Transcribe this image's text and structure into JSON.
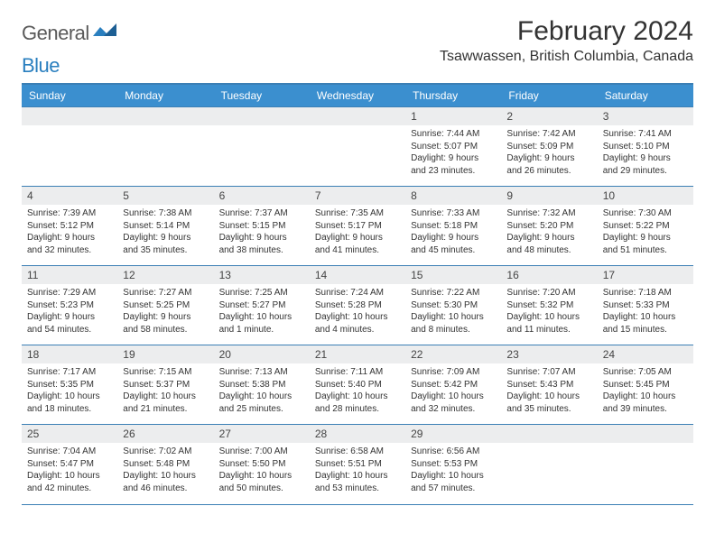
{
  "brand": {
    "part1": "General",
    "part2": "Blue"
  },
  "title": "February 2024",
  "location": "Tsawwassen, British Columbia, Canada",
  "colors": {
    "header_bg": "#3b8fcf",
    "header_text": "#ffffff",
    "rule": "#3b7fb5",
    "daynum_bg": "#ecedee",
    "text": "#333333",
    "logo_dark": "#5a5a5a",
    "logo_blue": "#2a7fbf"
  },
  "weekdays": [
    "Sunday",
    "Monday",
    "Tuesday",
    "Wednesday",
    "Thursday",
    "Friday",
    "Saturday"
  ],
  "weeks": [
    [
      null,
      null,
      null,
      null,
      {
        "n": "1",
        "sr": "Sunrise: 7:44 AM",
        "ss": "Sunset: 5:07 PM",
        "dl": "Daylight: 9 hours and 23 minutes."
      },
      {
        "n": "2",
        "sr": "Sunrise: 7:42 AM",
        "ss": "Sunset: 5:09 PM",
        "dl": "Daylight: 9 hours and 26 minutes."
      },
      {
        "n": "3",
        "sr": "Sunrise: 7:41 AM",
        "ss": "Sunset: 5:10 PM",
        "dl": "Daylight: 9 hours and 29 minutes."
      }
    ],
    [
      {
        "n": "4",
        "sr": "Sunrise: 7:39 AM",
        "ss": "Sunset: 5:12 PM",
        "dl": "Daylight: 9 hours and 32 minutes."
      },
      {
        "n": "5",
        "sr": "Sunrise: 7:38 AM",
        "ss": "Sunset: 5:14 PM",
        "dl": "Daylight: 9 hours and 35 minutes."
      },
      {
        "n": "6",
        "sr": "Sunrise: 7:37 AM",
        "ss": "Sunset: 5:15 PM",
        "dl": "Daylight: 9 hours and 38 minutes."
      },
      {
        "n": "7",
        "sr": "Sunrise: 7:35 AM",
        "ss": "Sunset: 5:17 PM",
        "dl": "Daylight: 9 hours and 41 minutes."
      },
      {
        "n": "8",
        "sr": "Sunrise: 7:33 AM",
        "ss": "Sunset: 5:18 PM",
        "dl": "Daylight: 9 hours and 45 minutes."
      },
      {
        "n": "9",
        "sr": "Sunrise: 7:32 AM",
        "ss": "Sunset: 5:20 PM",
        "dl": "Daylight: 9 hours and 48 minutes."
      },
      {
        "n": "10",
        "sr": "Sunrise: 7:30 AM",
        "ss": "Sunset: 5:22 PM",
        "dl": "Daylight: 9 hours and 51 minutes."
      }
    ],
    [
      {
        "n": "11",
        "sr": "Sunrise: 7:29 AM",
        "ss": "Sunset: 5:23 PM",
        "dl": "Daylight: 9 hours and 54 minutes."
      },
      {
        "n": "12",
        "sr": "Sunrise: 7:27 AM",
        "ss": "Sunset: 5:25 PM",
        "dl": "Daylight: 9 hours and 58 minutes."
      },
      {
        "n": "13",
        "sr": "Sunrise: 7:25 AM",
        "ss": "Sunset: 5:27 PM",
        "dl": "Daylight: 10 hours and 1 minute."
      },
      {
        "n": "14",
        "sr": "Sunrise: 7:24 AM",
        "ss": "Sunset: 5:28 PM",
        "dl": "Daylight: 10 hours and 4 minutes."
      },
      {
        "n": "15",
        "sr": "Sunrise: 7:22 AM",
        "ss": "Sunset: 5:30 PM",
        "dl": "Daylight: 10 hours and 8 minutes."
      },
      {
        "n": "16",
        "sr": "Sunrise: 7:20 AM",
        "ss": "Sunset: 5:32 PM",
        "dl": "Daylight: 10 hours and 11 minutes."
      },
      {
        "n": "17",
        "sr": "Sunrise: 7:18 AM",
        "ss": "Sunset: 5:33 PM",
        "dl": "Daylight: 10 hours and 15 minutes."
      }
    ],
    [
      {
        "n": "18",
        "sr": "Sunrise: 7:17 AM",
        "ss": "Sunset: 5:35 PM",
        "dl": "Daylight: 10 hours and 18 minutes."
      },
      {
        "n": "19",
        "sr": "Sunrise: 7:15 AM",
        "ss": "Sunset: 5:37 PM",
        "dl": "Daylight: 10 hours and 21 minutes."
      },
      {
        "n": "20",
        "sr": "Sunrise: 7:13 AM",
        "ss": "Sunset: 5:38 PM",
        "dl": "Daylight: 10 hours and 25 minutes."
      },
      {
        "n": "21",
        "sr": "Sunrise: 7:11 AM",
        "ss": "Sunset: 5:40 PM",
        "dl": "Daylight: 10 hours and 28 minutes."
      },
      {
        "n": "22",
        "sr": "Sunrise: 7:09 AM",
        "ss": "Sunset: 5:42 PM",
        "dl": "Daylight: 10 hours and 32 minutes."
      },
      {
        "n": "23",
        "sr": "Sunrise: 7:07 AM",
        "ss": "Sunset: 5:43 PM",
        "dl": "Daylight: 10 hours and 35 minutes."
      },
      {
        "n": "24",
        "sr": "Sunrise: 7:05 AM",
        "ss": "Sunset: 5:45 PM",
        "dl": "Daylight: 10 hours and 39 minutes."
      }
    ],
    [
      {
        "n": "25",
        "sr": "Sunrise: 7:04 AM",
        "ss": "Sunset: 5:47 PM",
        "dl": "Daylight: 10 hours and 42 minutes."
      },
      {
        "n": "26",
        "sr": "Sunrise: 7:02 AM",
        "ss": "Sunset: 5:48 PM",
        "dl": "Daylight: 10 hours and 46 minutes."
      },
      {
        "n": "27",
        "sr": "Sunrise: 7:00 AM",
        "ss": "Sunset: 5:50 PM",
        "dl": "Daylight: 10 hours and 50 minutes."
      },
      {
        "n": "28",
        "sr": "Sunrise: 6:58 AM",
        "ss": "Sunset: 5:51 PM",
        "dl": "Daylight: 10 hours and 53 minutes."
      },
      {
        "n": "29",
        "sr": "Sunrise: 6:56 AM",
        "ss": "Sunset: 5:53 PM",
        "dl": "Daylight: 10 hours and 57 minutes."
      },
      null,
      null
    ]
  ]
}
